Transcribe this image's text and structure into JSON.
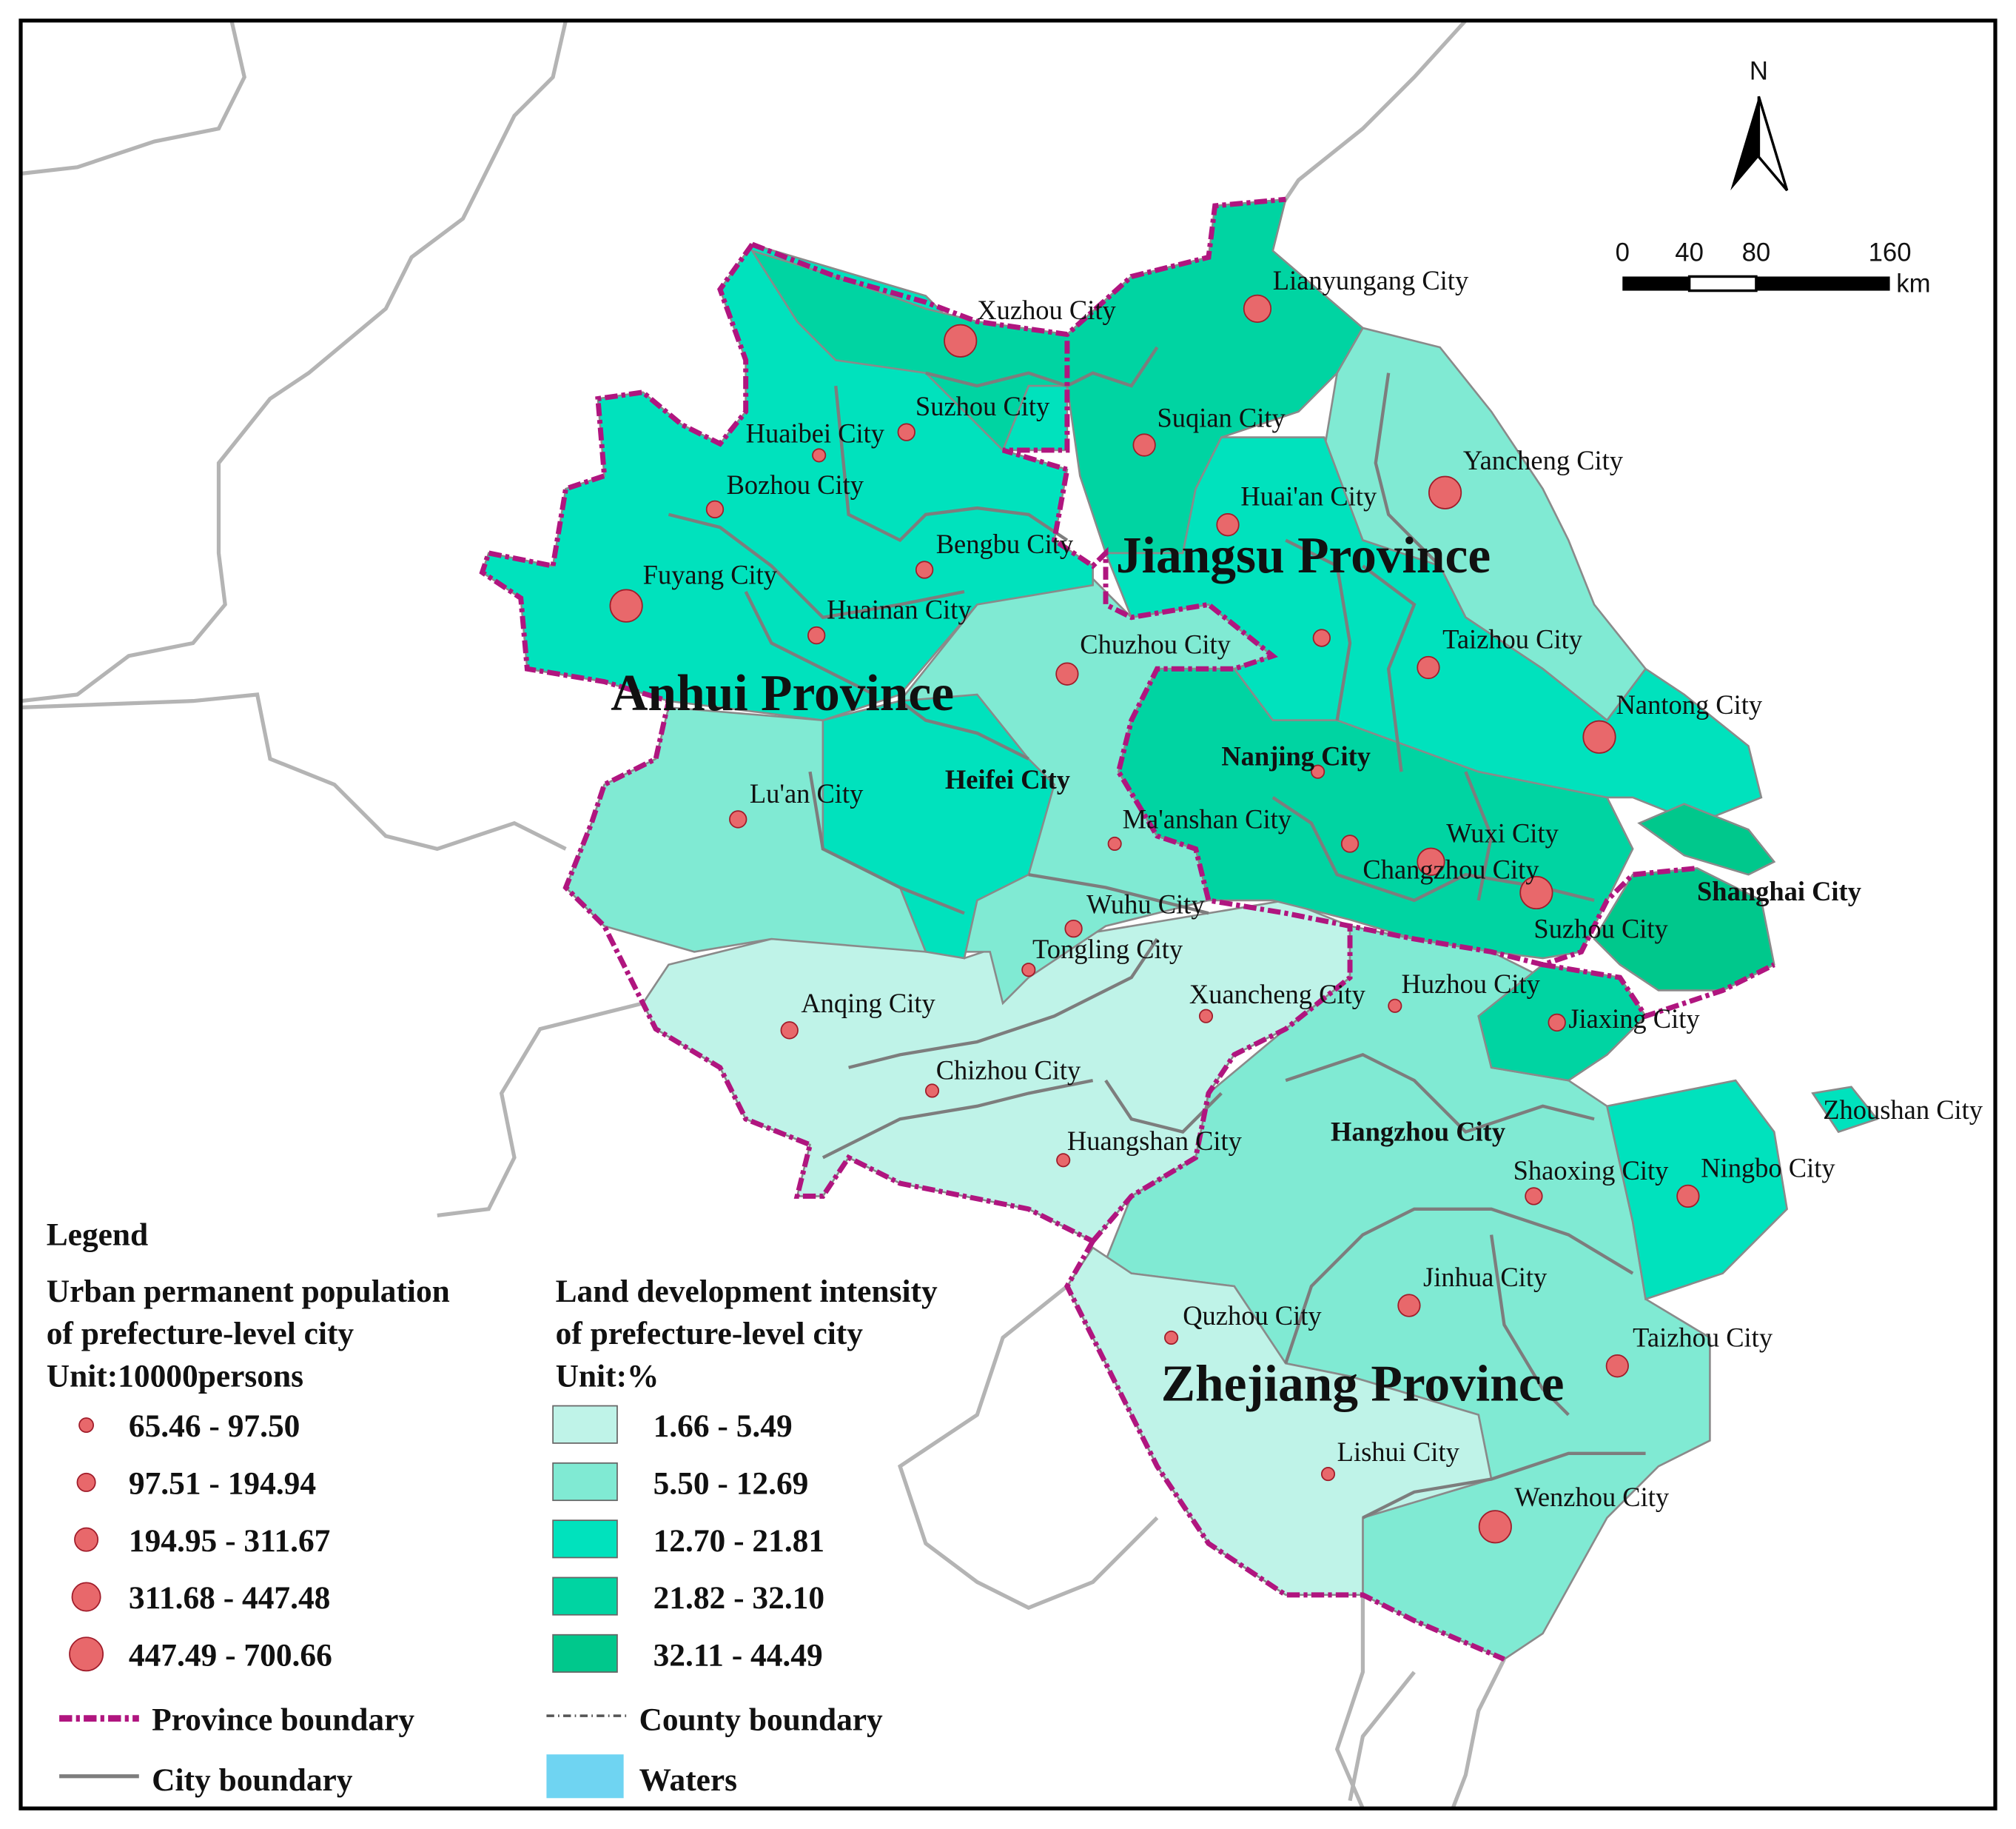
{
  "map": {
    "north": "N",
    "scale": {
      "ticks": [
        "0",
        "40",
        "80",
        "160"
      ],
      "unit": "km"
    },
    "provinces": [
      "Jiangsu Province",
      "Anhui Province",
      "Zhejiang Province"
    ],
    "cities": [
      "Xuzhou City",
      "Lianyungang City",
      "Suzhou City",
      "Suqian City",
      "Huaibei City",
      "Bozhou City",
      "Yancheng City",
      "Huai'an City",
      "Bengbu City",
      "Fuyang City",
      "Huainan City",
      "Chuzhou City",
      "Taizhou City",
      "Nantong City",
      "Nanjing City",
      "Heifei City",
      "Lu'an City",
      "Ma'anshan City",
      "Wuxi City",
      "Changzhou City",
      "Shanghai City",
      "Suzhou City",
      "Wuhu City",
      "Tongling City",
      "Anqing City",
      "Xuancheng City",
      "Huzhou City",
      "Jiaxing City",
      "Chizhou City",
      "Zhoushan City",
      "Hangzhou City",
      "Huangshan City",
      "Shaoxing City",
      "Ningbo City",
      "Jinhua City",
      "Quzhou City",
      "Taizhou City",
      "Lishui City",
      "Wenzhou City"
    ]
  },
  "legend": {
    "title": "Legend",
    "population": {
      "title_lines": [
        "Urban permanent population",
        "of prefecture-level city",
        "Unit:10000persons"
      ],
      "classes": [
        "65.46 - 97.50",
        "97.51 - 194.94",
        "194.95 - 311.67",
        "311.68 - 447.48",
        "447.49 - 700.66"
      ],
      "color": "#e8686b"
    },
    "intensity": {
      "title_lines": [
        "Land development intensity",
        "of prefecture-level city",
        "Unit:%"
      ],
      "classes": [
        "1.66 - 5.49",
        "5.50 - 12.69",
        "12.70 - 21.81",
        "21.82 - 32.10",
        "32.11 - 44.49"
      ],
      "colors": [
        "#bff3e8",
        "#80ead3",
        "#00e2bd",
        "#00d4a2",
        "#00c88c"
      ]
    },
    "lines": {
      "province": "Province boundary",
      "county": "County boundary",
      "city": "City boundary",
      "waters": "Waters"
    },
    "waters_color": "#6fd4f2"
  }
}
